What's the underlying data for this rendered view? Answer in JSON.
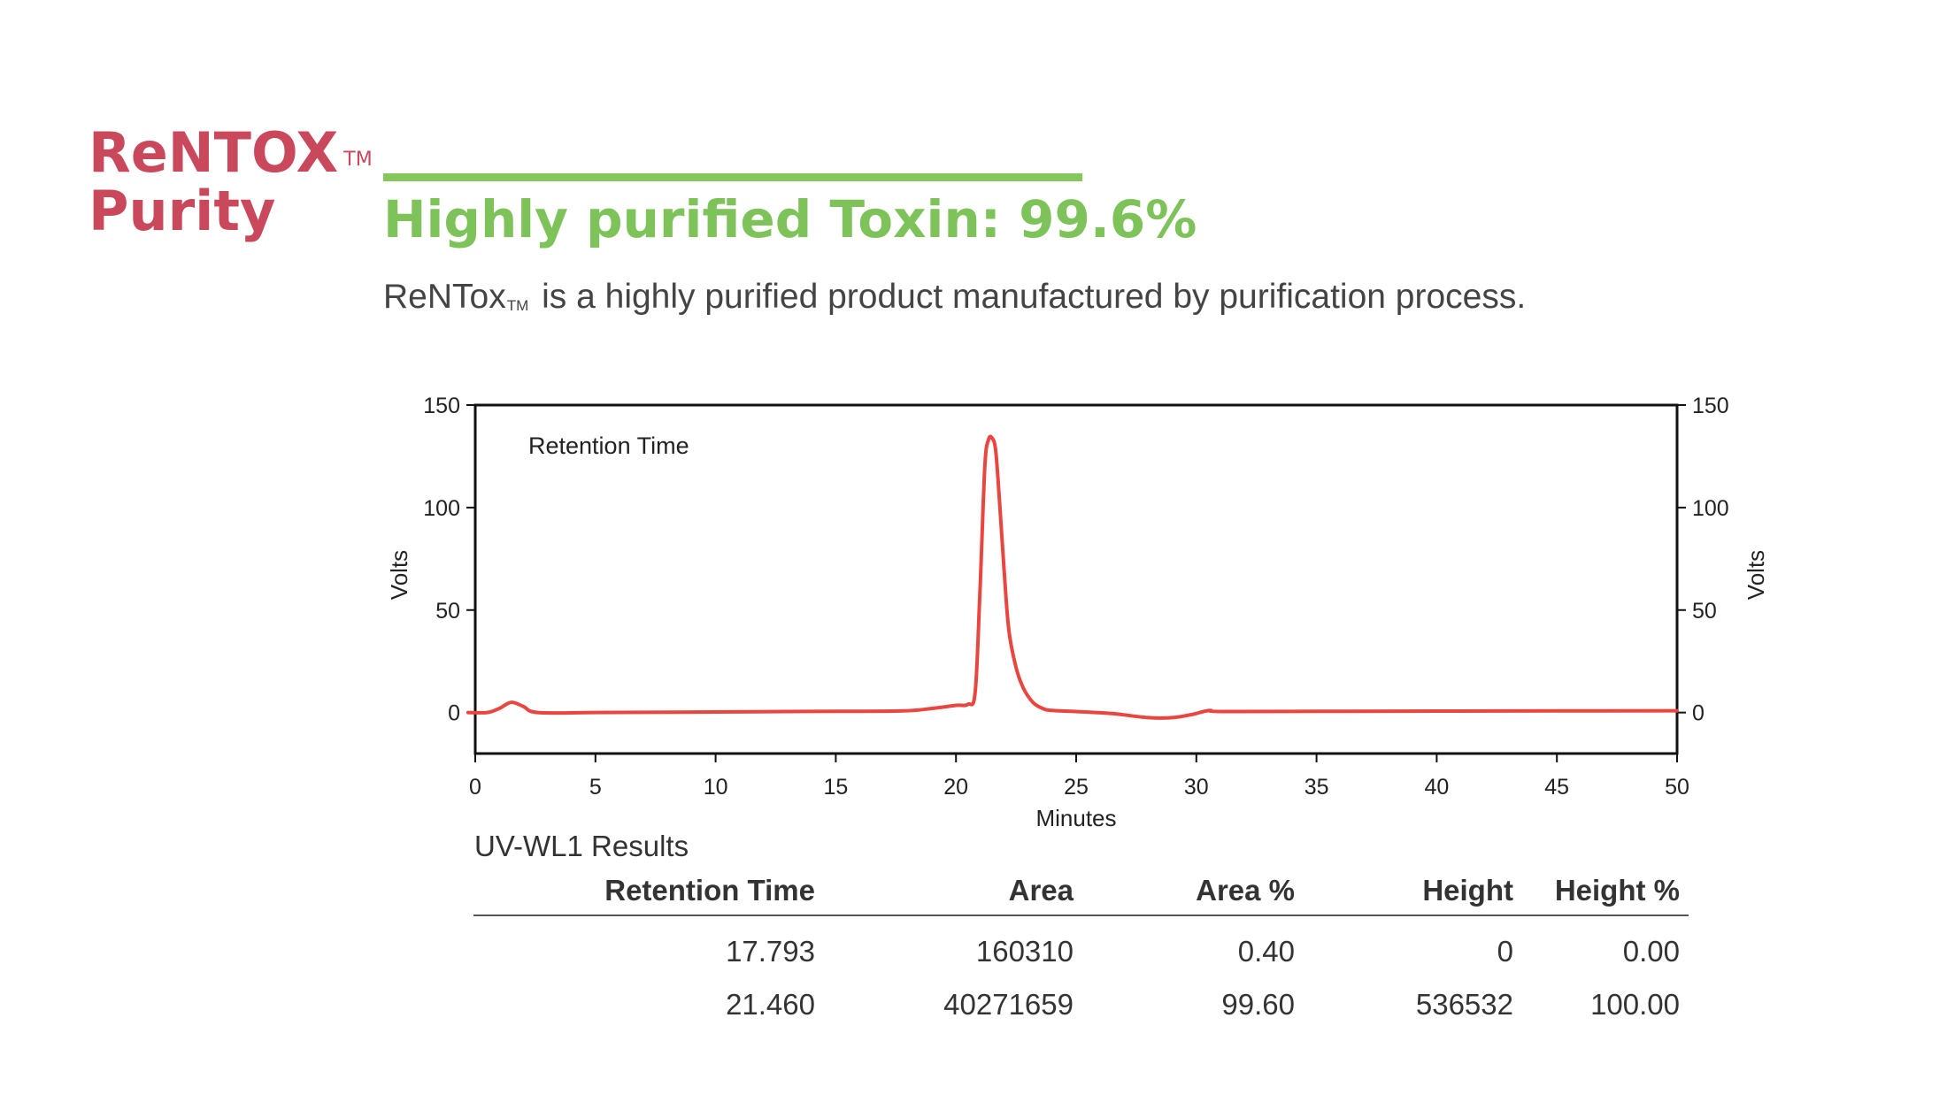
{
  "brand": {
    "line1": "ReNTOX",
    "tm": "TM",
    "line2": "Purity"
  },
  "headline": "Highly purified Toxin: 99.6%",
  "subtitle": {
    "prefix": "ReNTox",
    "tm": "TM",
    "rest": " is a highly purified product manufactured by purification process."
  },
  "colors": {
    "brand": "#c9485b",
    "accent_green": "#7dc35a",
    "trace": "#e8463f"
  },
  "chart_data": {
    "type": "line",
    "annotation": "Retention Time",
    "xlabel": "Minutes",
    "ylabel_left": "Volts",
    "ylabel_right": "Volts",
    "xlim": [
      0,
      50
    ],
    "ylim": [
      -20,
      150
    ],
    "x_ticks": [
      "0",
      "5",
      "10",
      "15",
      "20",
      "25",
      "30",
      "35",
      "40",
      "45",
      "50"
    ],
    "y_ticks": [
      "0",
      "50",
      "100",
      "150"
    ],
    "grid": false,
    "series": [
      {
        "x": [
          -0.3,
          0.5,
          1.0,
          1.5,
          2.0,
          2.6,
          5,
          10,
          15,
          17.8,
          19,
          20,
          20.5,
          20.8,
          21.0,
          21.2,
          21.35,
          21.5,
          21.65,
          21.8,
          22.0,
          22.2,
          22.5,
          22.8,
          23.2,
          23.6,
          24,
          25,
          26.5,
          28,
          29,
          29.8,
          30.3,
          30.6,
          31,
          35,
          40,
          45,
          50
        ],
        "y": [
          0,
          0,
          2,
          5,
          3,
          0,
          0,
          0.3,
          0.6,
          0.8,
          2,
          3.5,
          4,
          10,
          60,
          120,
          133,
          134,
          128,
          105,
          70,
          40,
          22,
          12,
          5,
          2,
          1,
          0.5,
          -0.5,
          -2.5,
          -2.5,
          -1,
          0.5,
          1,
          0.5,
          0.6,
          0.7,
          0.8,
          0.9
        ]
      }
    ]
  },
  "results": {
    "title": "UV-WL1 Results",
    "columns": [
      "Retention Time",
      "Area",
      "Area %",
      "Height",
      "Height %"
    ],
    "rows": [
      [
        "17.793",
        "160310",
        "0.40",
        "0",
        "0.00"
      ],
      [
        "21.460",
        "40271659",
        "99.60",
        "536532",
        "100.00"
      ]
    ]
  }
}
